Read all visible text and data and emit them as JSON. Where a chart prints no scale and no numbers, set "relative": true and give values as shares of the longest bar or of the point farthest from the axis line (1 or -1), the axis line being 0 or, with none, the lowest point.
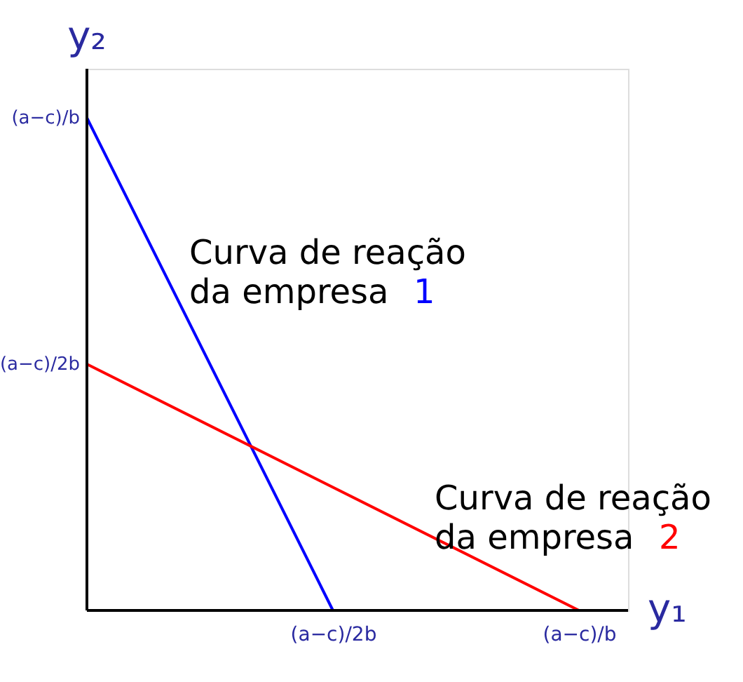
{
  "chart_data": {
    "type": "line",
    "xlabel": "y₁",
    "ylabel": "y₂",
    "categories": [
      null,
      "(a−c)/2b",
      "(a−c)/b"
    ],
    "relative": true,
    "series": [
      {
        "name": "1",
        "color": "#0000ff",
        "values": [
          1,
          0,
          null
        ]
      },
      {
        "name": "2",
        "color": "#ff0000",
        "values": [
          0.5,
          0.25,
          0
        ]
      }
    ],
    "annotations": [
      "Curva de reação\nda empresa",
      "Curva de reação\nda empresa",
      "(a−c)/b",
      "(a−c)/2b"
    ],
    "grid": false,
    "legend": false,
    "line_style": "solid",
    "marker": "none"
  }
}
